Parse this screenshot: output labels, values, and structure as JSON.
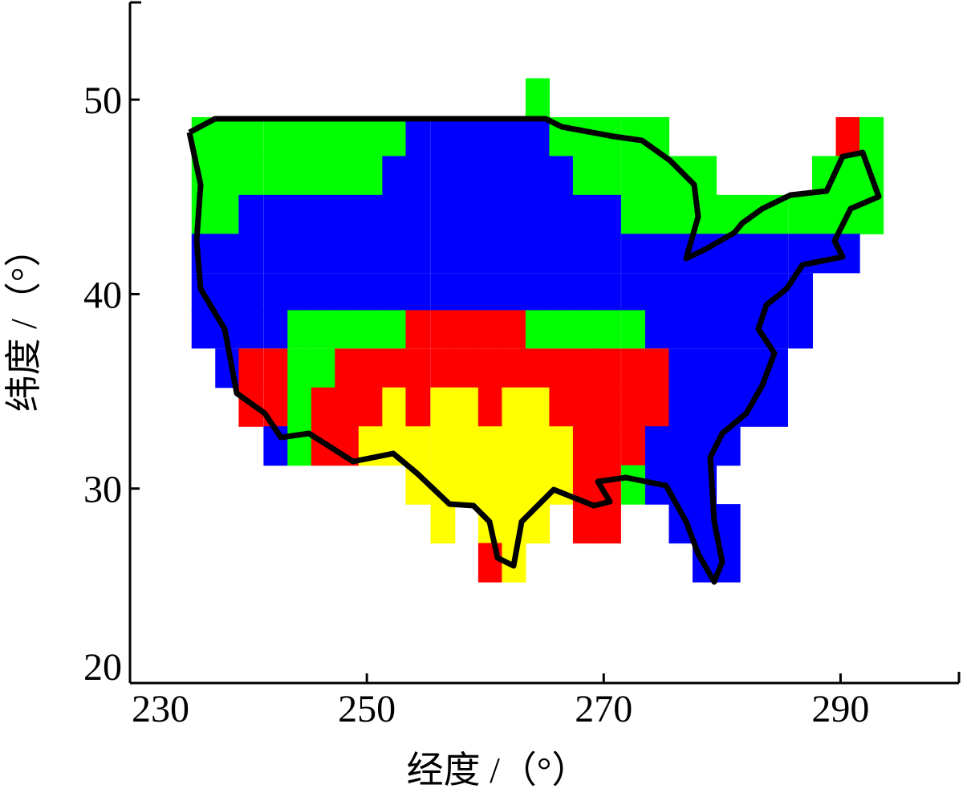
{
  "chart_data": {
    "type": "heatmap",
    "x_label": "经度 /（°）",
    "y_label": "纬度 /（°）",
    "xlim": [
      230,
      300
    ],
    "ylim": [
      20,
      55
    ],
    "xticks": [
      230,
      250,
      270,
      290
    ],
    "yticks": [
      20,
      30,
      40,
      50
    ],
    "x": [
      236.2,
      238.2,
      240.2,
      242.3,
      244.3,
      246.3,
      248.3,
      250.3,
      252.3,
      254.3,
      256.4,
      258.4,
      260.4,
      262.4,
      264.4,
      266.4,
      268.4,
      270.4,
      272.5,
      274.5,
      276.5,
      278.5,
      280.5,
      282.5,
      284.5,
      286.6,
      288.6,
      290.6,
      292.6
    ],
    "y": [
      50.1,
      48.1,
      46.1,
      44.1,
      42.1,
      40.1,
      38.2,
      36.2,
      34.2,
      32.2,
      30.2,
      28.2,
      26.2
    ],
    "cells": [
      [
        null,
        null,
        null,
        null,
        null,
        null,
        null,
        null,
        null,
        null,
        null,
        null,
        null,
        null,
        "#00ff00",
        null,
        null,
        null,
        null,
        null,
        null,
        null,
        null,
        null,
        null,
        null,
        null,
        null,
        null
      ],
      [
        "#00ff00",
        "#00ff00",
        "#00ff00",
        "#00ff00",
        "#00ff00",
        "#00ff00",
        "#00ff00",
        "#00ff00",
        "#00ff00",
        "#0000ff",
        "#0000ff",
        "#0000ff",
        "#0000ff",
        "#0000ff",
        "#0000ff",
        "#00ff00",
        "#00ff00",
        "#00ff00",
        "#00ff00",
        "#00ff00",
        null,
        null,
        null,
        null,
        null,
        null,
        null,
        "#ff0000",
        "#00ff00"
      ],
      [
        "#00ff00",
        "#00ff00",
        "#00ff00",
        "#00ff00",
        "#00ff00",
        "#00ff00",
        "#00ff00",
        "#00ff00",
        "#0000ff",
        "#0000ff",
        "#0000ff",
        "#0000ff",
        "#0000ff",
        "#0000ff",
        "#0000ff",
        "#0000ff",
        "#00ff00",
        "#00ff00",
        "#00ff00",
        "#00ff00",
        "#00ff00",
        "#00ff00",
        null,
        null,
        null,
        null,
        "#00ff00",
        "#00ff00",
        "#00ff00"
      ],
      [
        "#00ff00",
        "#00ff00",
        "#0000ff",
        "#0000ff",
        "#0000ff",
        "#0000ff",
        "#0000ff",
        "#0000ff",
        "#0000ff",
        "#0000ff",
        "#0000ff",
        "#0000ff",
        "#0000ff",
        "#0000ff",
        "#0000ff",
        "#0000ff",
        "#0000ff",
        "#0000ff",
        "#00ff00",
        "#00ff00",
        "#00ff00",
        "#00ff00",
        "#00ff00",
        "#00ff00",
        "#00ff00",
        "#00ff00",
        "#00ff00",
        "#00ff00",
        "#00ff00"
      ],
      [
        "#0000ff",
        "#0000ff",
        "#0000ff",
        "#0000ff",
        "#0000ff",
        "#0000ff",
        "#0000ff",
        "#0000ff",
        "#0000ff",
        "#0000ff",
        "#0000ff",
        "#0000ff",
        "#0000ff",
        "#0000ff",
        "#0000ff",
        "#0000ff",
        "#0000ff",
        "#0000ff",
        "#0000ff",
        "#0000ff",
        "#0000ff",
        "#0000ff",
        "#0000ff",
        "#0000ff",
        "#0000ff",
        "#0000ff",
        "#0000ff",
        "#0000ff",
        null
      ],
      [
        "#0000ff",
        "#0000ff",
        "#0000ff",
        "#0000ff",
        "#0000ff",
        "#0000ff",
        "#0000ff",
        "#0000ff",
        "#0000ff",
        "#0000ff",
        "#0000ff",
        "#0000ff",
        "#0000ff",
        "#0000ff",
        "#0000ff",
        "#0000ff",
        "#0000ff",
        "#0000ff",
        "#0000ff",
        "#0000ff",
        "#0000ff",
        "#0000ff",
        "#0000ff",
        "#0000ff",
        "#0000ff",
        "#0000ff",
        null,
        null,
        null
      ],
      [
        "#0000ff",
        "#0000ff",
        "#0000ff",
        "#0000ff",
        "#00ff00",
        "#00ff00",
        "#00ff00",
        "#00ff00",
        "#00ff00",
        "#ff0000",
        "#ff0000",
        "#ff0000",
        "#ff0000",
        "#ff0000",
        "#00ff00",
        "#00ff00",
        "#00ff00",
        "#00ff00",
        "#00ff00",
        "#0000ff",
        "#0000ff",
        "#0000ff",
        "#0000ff",
        "#0000ff",
        "#0000ff",
        "#0000ff",
        null,
        null,
        null
      ],
      [
        null,
        "#0000ff",
        "#ff0000",
        "#ff0000",
        "#00ff00",
        "#00ff00",
        "#ff0000",
        "#ff0000",
        "#ff0000",
        "#ff0000",
        "#ff0000",
        "#ff0000",
        "#ff0000",
        "#ff0000",
        "#ff0000",
        "#ff0000",
        "#ff0000",
        "#ff0000",
        "#ff0000",
        "#ff0000",
        "#0000ff",
        "#0000ff",
        "#0000ff",
        "#0000ff",
        "#0000ff",
        null,
        null,
        null,
        null
      ],
      [
        null,
        null,
        "#ff0000",
        "#ff0000",
        "#00ff00",
        "#ff0000",
        "#ff0000",
        "#ff0000",
        "#ffff00",
        "#ff0000",
        "#ffff00",
        "#ffff00",
        "#ff0000",
        "#ffff00",
        "#ffff00",
        "#ff0000",
        "#ff0000",
        "#ff0000",
        "#ff0000",
        "#ff0000",
        "#0000ff",
        "#0000ff",
        "#0000ff",
        "#0000ff",
        "#0000ff",
        null,
        null,
        null,
        null
      ],
      [
        null,
        null,
        null,
        "#0000ff",
        "#00ff00",
        "#ff0000",
        "#ff0000",
        "#ffff00",
        "#ffff00",
        "#ffff00",
        "#ffff00",
        "#ffff00",
        "#ffff00",
        "#ffff00",
        "#ffff00",
        "#ffff00",
        "#ff0000",
        "#ff0000",
        "#ff0000",
        "#0000ff",
        "#0000ff",
        "#0000ff",
        "#0000ff",
        null,
        null,
        null,
        null,
        null,
        null
      ],
      [
        null,
        null,
        null,
        null,
        null,
        null,
        null,
        null,
        null,
        "#ffff00",
        "#ffff00",
        "#ffff00",
        "#ffff00",
        "#ffff00",
        "#ffff00",
        "#ffff00",
        "#ff0000",
        "#ff0000",
        "#00ff00",
        "#0000ff",
        "#0000ff",
        "#0000ff",
        null,
        null,
        null,
        null,
        null,
        null,
        null
      ],
      [
        null,
        null,
        null,
        null,
        null,
        null,
        null,
        null,
        null,
        null,
        "#ffff00",
        null,
        "#ffff00",
        "#ffff00",
        "#ffff00",
        null,
        "#ff0000",
        "#ff0000",
        null,
        null,
        "#0000ff",
        "#0000ff",
        "#0000ff",
        null,
        null,
        null,
        null,
        null,
        null
      ],
      [
        null,
        null,
        null,
        null,
        null,
        null,
        null,
        null,
        null,
        null,
        null,
        null,
        "#ff0000",
        "#ffff00",
        null,
        null,
        null,
        null,
        null,
        null,
        null,
        "#0000ff",
        "#0000ff",
        null,
        null,
        null,
        null,
        null,
        null
      ]
    ]
  }
}
